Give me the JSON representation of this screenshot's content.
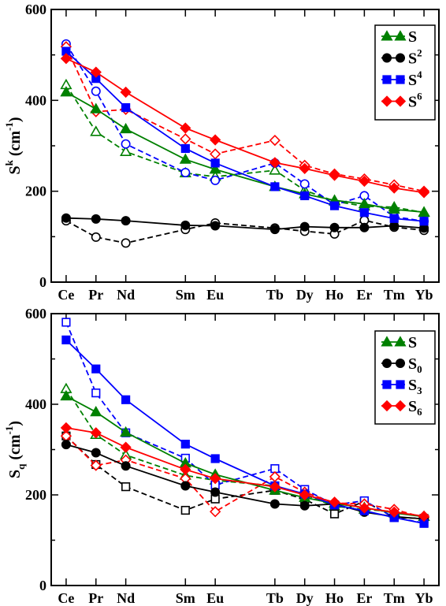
{
  "chart_data": [
    {
      "type": "line",
      "ylabel": {
        "main": "S",
        "sup": "k",
        "rest": " (cm",
        "sup2": "-1",
        "close": ")"
      },
      "ylim": [
        0,
        600
      ],
      "yticks": [
        0,
        200,
        400,
        600
      ],
      "xlim": [
        57.5,
        70.5
      ],
      "categories": [
        {
          "label": "Ce",
          "z": 58
        },
        {
          "label": "Pr",
          "z": 59
        },
        {
          "label": "Nd",
          "z": 60
        },
        {
          "label": "Sm",
          "z": 62
        },
        {
          "label": "Eu",
          "z": 63
        },
        {
          "label": "Tb",
          "z": 65
        },
        {
          "label": "Dy",
          "z": 66
        },
        {
          "label": "Ho",
          "z": 67
        },
        {
          "label": "Er",
          "z": 68
        },
        {
          "label": "Tm",
          "z": 69
        },
        {
          "label": "Yb",
          "z": 70
        }
      ],
      "legend_position": "top-right",
      "series": [
        {
          "name": "S",
          "name_sub": "",
          "name_sup": "",
          "color": "#008000",
          "marker": "triangle",
          "style": "solid",
          "x": [
            58,
            59,
            60,
            62,
            63,
            65,
            66,
            67,
            68,
            69,
            70
          ],
          "values": [
            418,
            381,
            337,
            270,
            248,
            210,
            194,
            180,
            172,
            160,
            154
          ]
        },
        {
          "name": "S",
          "name_sub": "",
          "name_sup": "2",
          "color": "#000000",
          "marker": "circle",
          "style": "solid",
          "x": [
            58,
            59,
            60,
            62,
            63,
            65,
            66,
            67,
            68,
            69,
            70
          ],
          "values": [
            141,
            139,
            135,
            125,
            124,
            116,
            122,
            120,
            120,
            124,
            119
          ]
        },
        {
          "name": "S",
          "name_sub": "",
          "name_sup": "4",
          "color": "#0000ff",
          "marker": "square",
          "style": "solid",
          "x": [
            58,
            59,
            60,
            62,
            63,
            65,
            66,
            67,
            68,
            69,
            70
          ],
          "values": [
            508,
            448,
            384,
            294,
            262,
            210,
            190,
            168,
            153,
            140,
            134
          ]
        },
        {
          "name": "S",
          "name_sub": "",
          "name_sup": "6",
          "color": "#ff0000",
          "marker": "diamond",
          "style": "solid",
          "x": [
            58,
            59,
            60,
            62,
            63,
            65,
            66,
            67,
            68,
            69,
            70
          ],
          "values": [
            492,
            462,
            418,
            339,
            313,
            263,
            250,
            235,
            222,
            207,
            197
          ]
        },
        {
          "name": "",
          "color": "#008000",
          "marker": "triangle-open",
          "style": "dashed",
          "x": [
            58,
            59,
            60,
            62,
            63,
            65,
            66,
            67,
            68,
            69,
            70
          ],
          "values": [
            434,
            331,
            287,
            240,
            232,
            246,
            202,
            178,
            167,
            165,
            153
          ]
        },
        {
          "name": "",
          "color": "#000000",
          "marker": "circle-open",
          "style": "dashed",
          "x": [
            58,
            59,
            60,
            62,
            63,
            65,
            66,
            67,
            68,
            69,
            70
          ],
          "values": [
            135,
            99,
            86,
            116,
            130,
            119,
            112,
            106,
            136,
            121,
            114
          ]
        },
        {
          "name": "",
          "color": "#0000ff",
          "marker": "circle-open",
          "style": "dashed",
          "x": [
            58,
            59,
            60,
            62,
            63,
            65,
            66,
            67,
            68,
            69,
            70
          ],
          "values": [
            524,
            420,
            304,
            241,
            224,
            262,
            216,
            170,
            190,
            144,
            134
          ]
        },
        {
          "name": "",
          "color": "#ff0000",
          "marker": "diamond-open",
          "style": "dashed",
          "x": [
            58,
            59,
            60,
            62,
            63,
            65,
            66,
            67,
            68,
            69,
            70
          ],
          "values": [
            518,
            375,
            380,
            315,
            282,
            312,
            257,
            238,
            227,
            214,
            200
          ]
        }
      ]
    },
    {
      "type": "line",
      "ylabel": {
        "main": "S",
        "sub": "q",
        "rest": " (cm",
        "sup2": "-1",
        "close": ")"
      },
      "ylim": [
        0,
        600
      ],
      "yticks": [
        0,
        200,
        400,
        600
      ],
      "xlim": [
        57.5,
        70.5
      ],
      "categories": [
        {
          "label": "Ce",
          "z": 58
        },
        {
          "label": "Pr",
          "z": 59
        },
        {
          "label": "Nd",
          "z": 60
        },
        {
          "label": "Sm",
          "z": 62
        },
        {
          "label": "Eu",
          "z": 63
        },
        {
          "label": "Tb",
          "z": 65
        },
        {
          "label": "Dy",
          "z": 66
        },
        {
          "label": "Ho",
          "z": 67
        },
        {
          "label": "Er",
          "z": 68
        },
        {
          "label": "Tm",
          "z": 69
        },
        {
          "label": "Yb",
          "z": 70
        }
      ],
      "legend_position": "top-right",
      "series": [
        {
          "name": "S",
          "name_sub": "",
          "name_sup": "",
          "color": "#008000",
          "marker": "triangle",
          "style": "solid",
          "x": [
            58,
            59,
            60,
            62,
            63,
            65,
            66,
            67,
            68,
            69,
            70
          ],
          "values": [
            418,
            383,
            338,
            270,
            245,
            210,
            194,
            181,
            172,
            160,
            152
          ]
        },
        {
          "name": "S",
          "name_sub": "0",
          "name_sup": "",
          "color": "#000000",
          "marker": "circle",
          "style": "solid",
          "x": [
            58,
            59,
            60,
            62,
            63,
            65,
            66,
            67,
            68,
            69,
            70
          ],
          "values": [
            311,
            293,
            264,
            220,
            206,
            180,
            176,
            180,
            162,
            152,
            147
          ]
        },
        {
          "name": "S",
          "name_sub": "3",
          "name_sup": "",
          "color": "#0000ff",
          "marker": "square",
          "style": "solid",
          "x": [
            58,
            59,
            60,
            62,
            63,
            65,
            66,
            67,
            68,
            69,
            70
          ],
          "values": [
            542,
            478,
            410,
            312,
            280,
            220,
            202,
            178,
            165,
            150,
            137
          ]
        },
        {
          "name": "S",
          "name_sub": "6",
          "name_sup": "",
          "color": "#ff0000",
          "marker": "diamond",
          "style": "solid",
          "x": [
            58,
            59,
            60,
            62,
            63,
            65,
            66,
            67,
            68,
            69,
            70
          ],
          "values": [
            348,
            337,
            305,
            256,
            236,
            218,
            200,
            184,
            171,
            162,
            153
          ]
        },
        {
          "name": "",
          "color": "#008000",
          "marker": "triangle-open",
          "style": "dashed",
          "x": [
            58,
            59,
            60,
            62,
            63,
            65,
            66,
            67,
            68,
            69,
            70
          ],
          "values": [
            434,
            333,
            288,
            243,
            232,
            220,
            200,
            175,
            168,
            163,
            152
          ]
        },
        {
          "name": "",
          "color": "#000000",
          "marker": "square-open",
          "style": "dashed",
          "x": [
            58,
            59,
            60,
            62,
            63,
            65,
            66,
            67,
            68,
            69,
            70
          ],
          "values": [
            330,
            267,
            218,
            166,
            191,
            210,
            190,
            158,
            186,
            150,
            148
          ]
        },
        {
          "name": "",
          "color": "#0000ff",
          "marker": "square-open",
          "style": "dashed",
          "x": [
            58,
            59,
            60,
            62,
            63,
            65,
            66,
            67,
            68,
            69,
            70
          ],
          "values": [
            581,
            425,
            337,
            281,
            222,
            258,
            212,
            178,
            187,
            150,
            138
          ]
        },
        {
          "name": "",
          "color": "#ff0000",
          "marker": "diamond-open",
          "style": "dashed",
          "x": [
            58,
            59,
            60,
            62,
            63,
            65,
            66,
            67,
            68,
            69,
            70
          ],
          "values": [
            330,
            265,
            277,
            236,
            163,
            240,
            206,
            182,
            180,
            168,
            150
          ]
        }
      ]
    }
  ]
}
